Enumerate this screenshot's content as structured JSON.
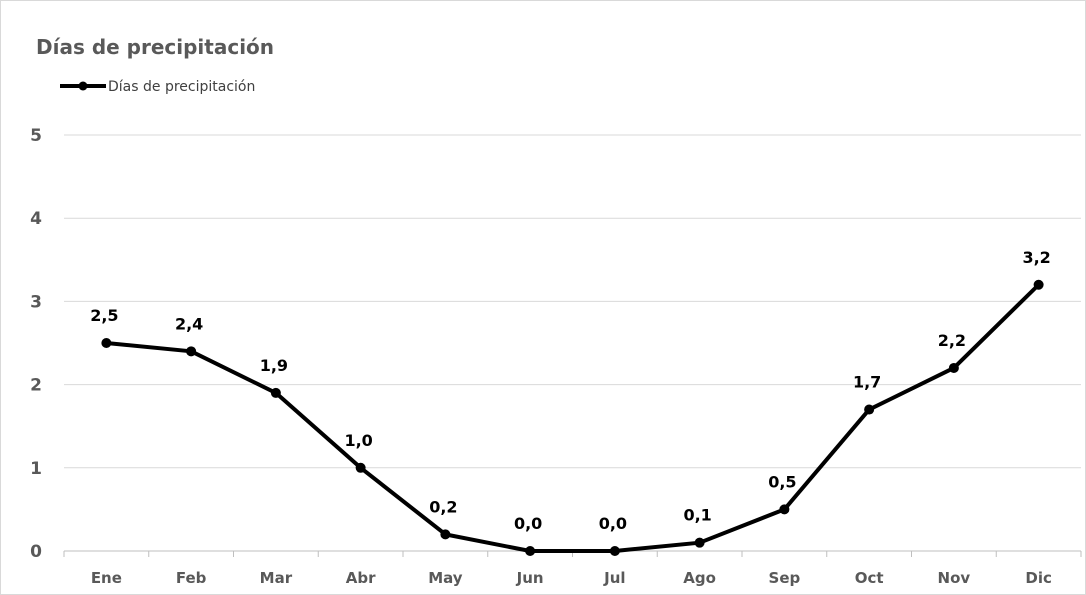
{
  "chart_data": {
    "type": "line",
    "title": "Días de precipitación",
    "categories": [
      "Ene",
      "Feb",
      "Mar",
      "Abr",
      "May",
      "Jun",
      "Jul",
      "Ago",
      "Sep",
      "Oct",
      "Nov",
      "Dic"
    ],
    "series": [
      {
        "name": "Días de precipitación",
        "values": [
          2.5,
          2.4,
          1.9,
          1.0,
          0.2,
          0.0,
          0.0,
          0.1,
          0.5,
          1.7,
          2.2,
          3.2
        ],
        "labels": [
          "2,5",
          "2,4",
          "1,9",
          "1,0",
          "0,2",
          "0,0",
          "0,0",
          "0,1",
          "0,5",
          "1,7",
          "2,2",
          "3,2"
        ],
        "color": "#000000"
      }
    ],
    "ylim": [
      0,
      5
    ],
    "yticks": [
      "0",
      "1",
      "2",
      "3",
      "4",
      "5"
    ],
    "grid": true,
    "legend": "top-left",
    "xlabel": "",
    "ylabel": ""
  }
}
